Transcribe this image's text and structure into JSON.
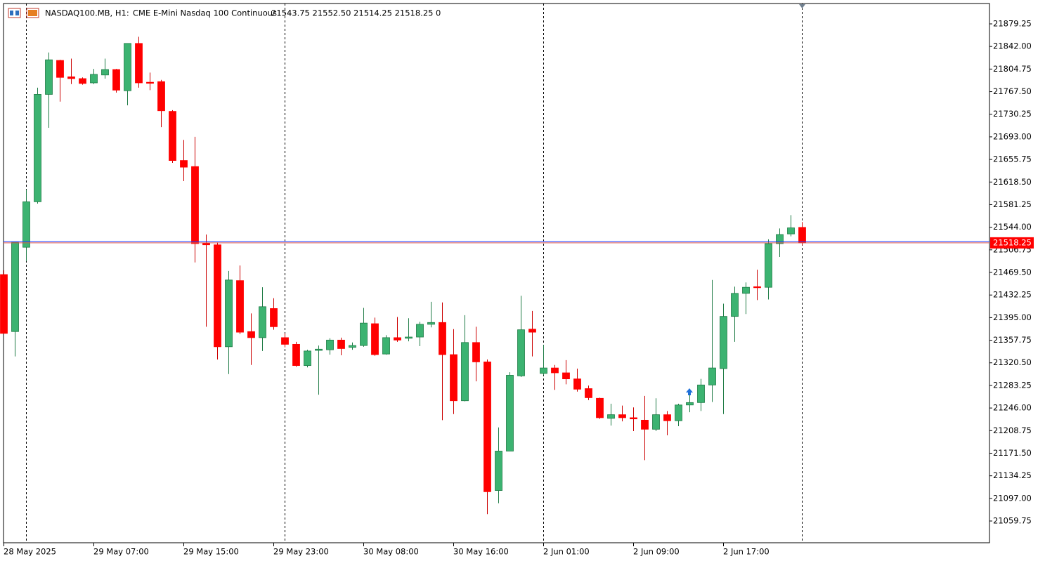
{
  "header": {
    "symbol": "NASDAQ100.MB, H1:",
    "description": "CME E-Mini Nasdaq 100 Continuous",
    "ohlc": "21543.75 21552.50 21514.25 21518.25",
    "volume": "0"
  },
  "chart_data": {
    "type": "candlestick",
    "categories": [
      "28 May 2025",
      null,
      null,
      null,
      null,
      null,
      null,
      null,
      "29 May 07:00",
      null,
      null,
      null,
      null,
      null,
      null,
      null,
      "29 May 15:00",
      null,
      null,
      null,
      null,
      null,
      null,
      null,
      "29 May 23:00",
      null,
      null,
      null,
      null,
      null,
      null,
      null,
      "30 May 08:00",
      null,
      null,
      null,
      null,
      null,
      null,
      null,
      "30 May 16:00",
      null,
      null,
      null,
      null,
      null,
      null,
      null,
      "2 Jun 01:00",
      null,
      null,
      null,
      null,
      null,
      null,
      null,
      "2 Jun 09:00",
      null,
      null,
      null,
      null,
      null,
      null,
      null,
      "2 Jun 17:00",
      null,
      null,
      null,
      null,
      null,
      null,
      null
    ],
    "open": [
      21466,
      21372,
      21511,
      21586,
      21763,
      21819,
      21792,
      21789,
      21782,
      21795,
      21804,
      21769,
      21847,
      21783,
      21784,
      21735,
      21654,
      21644,
      21518,
      21515,
      21347,
      21456,
      21372,
      21362,
      21410,
      21362,
      21351,
      21316,
      21341,
      21342,
      21358,
      21346,
      21349,
      21385,
      21335,
      21362,
      21361,
      21363,
      21384,
      21387,
      21334,
      21258,
      21354,
      21322,
      21110,
      21175,
      21299,
      21376,
      21303,
      21312,
      21304,
      21294,
      21278,
      21262,
      21229,
      21235,
      21230,
      21226,
      21211,
      21235,
      21225,
      21251,
      21255,
      21284,
      21311,
      21397,
      21435,
      21446,
      21445,
      21517,
      21533,
      21543.75
    ],
    "high": [
      21473,
      21519,
      21606,
      21774,
      21832,
      21820,
      21822,
      21791,
      21805,
      21822,
      21805,
      21847,
      21858,
      21799,
      21787,
      21737,
      21688,
      21693,
      21532,
      21519,
      21472,
      21481,
      21402,
      21445,
      21427,
      21369,
      21355,
      21342,
      21349,
      21361,
      21362,
      21354,
      21411,
      21395,
      21366,
      21396,
      21394,
      21388,
      21421,
      21420,
      21376,
      21399,
      21380,
      21326,
      21214,
      21305,
      21431,
      21406,
      21350,
      21317,
      21325,
      21311,
      21283,
      21263,
      21253,
      21250,
      21247,
      21266,
      21262,
      21241,
      21253,
      21268,
      21294,
      21457,
      21418,
      21446,
      21453,
      21474,
      21524,
      21542,
      21564,
      21552.5
    ],
    "low": [
      21369,
      21331,
      21488,
      21583,
      21708,
      21751,
      21780,
      21779,
      21780,
      21789,
      21766,
      21745,
      21774,
      21770,
      21709,
      21650,
      21620,
      21486,
      21380,
      21326,
      21302,
      21368,
      21317,
      21340,
      21375,
      21346,
      21314,
      21313,
      21268,
      21334,
      21333,
      21342,
      21347,
      21332,
      21334,
      21355,
      21356,
      21348,
      21379,
      21226,
      21236,
      21257,
      21290,
      21071,
      21089,
      21175,
      21297,
      21331,
      21300,
      21276,
      21285,
      21273,
      21259,
      21228,
      21217,
      21224,
      21208,
      21160,
      21208,
      21201,
      21216,
      21239,
      21241,
      21256,
      21236,
      21355,
      21401,
      21424,
      21425,
      21495,
      21529,
      21514.25
    ],
    "close": [
      21369,
      21519,
      21586,
      21763,
      21820,
      21791,
      21789,
      21781,
      21796,
      21804,
      21770,
      21847,
      21782,
      21782,
      21736,
      21654,
      21643,
      21517,
      21515,
      21347,
      21457,
      21371,
      21362,
      21413,
      21380,
      21351,
      21316,
      21340,
      21343,
      21358,
      21344,
      21349,
      21386,
      21334,
      21362,
      21358,
      21363,
      21384,
      21387,
      21334,
      21258,
      21354,
      21322,
      21108,
      21175,
      21300,
      21375,
      21371,
      21312,
      21304,
      21294,
      21277,
      21263,
      21230,
      21235,
      21230,
      21228,
      21211,
      21235,
      21225,
      21251,
      21255,
      21284,
      21312,
      21397,
      21435,
      21445,
      21445,
      21517,
      21532,
      21543,
      21518.25
    ],
    "up_color": "#3cb371",
    "down_color": "#ff0000",
    "current_price": 21518.25,
    "ylim": [
      21023.9,
      21912.8
    ],
    "yticks": [
      21879.25,
      {
        "value": 21842,
        "label": "21842.00"
      },
      21804.75,
      {
        "value": 21767.5,
        "label": "21767.50"
      },
      21730.25,
      {
        "value": 21693,
        "label": "21693.00"
      },
      21655.75,
      {
        "value": 21618.5,
        "label": "21618.50"
      },
      21581.25,
      {
        "value": 21544,
        "label": "21544.00"
      },
      21506.75,
      {
        "value": 21469.5,
        "label": "21469.50"
      },
      21432.25,
      {
        "value": 21395,
        "label": "21395.00"
      },
      21357.75,
      {
        "value": 21320.5,
        "label": "21320.50"
      },
      21283.25,
      {
        "value": 21246,
        "label": "21246.00"
      },
      21208.75,
      {
        "value": 21171.5,
        "label": "21171.50"
      },
      21134.25,
      {
        "value": 21097,
        "label": "21097.00"
      },
      21059.75
    ]
  }
}
